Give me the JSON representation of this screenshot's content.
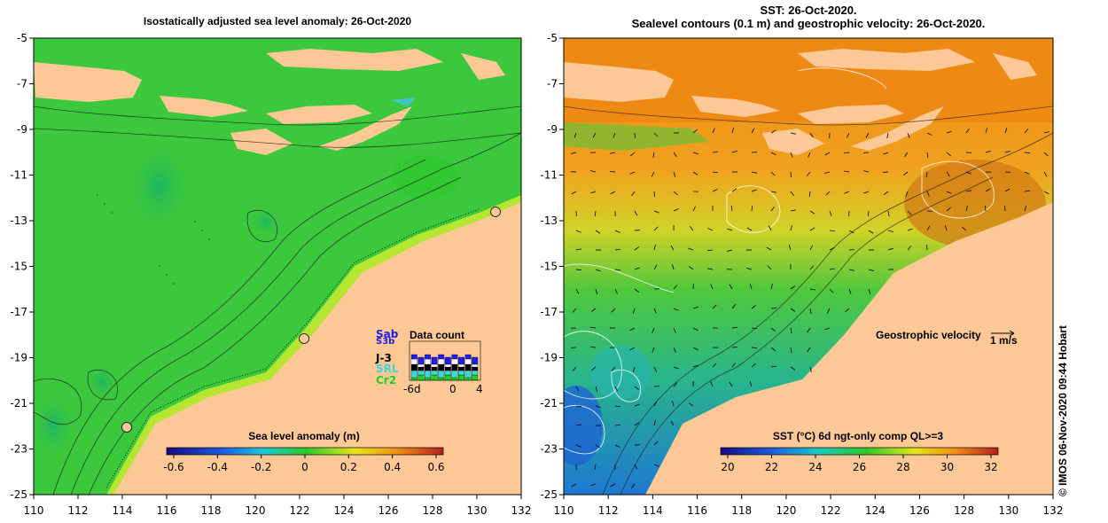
{
  "left_map": {
    "title": "Isostatically adjusted sea level anomaly: 26-Oct-2020",
    "colorbar": {
      "label": "Sea level anomaly (m)",
      "ticks": [
        "-0.6",
        "-0.4",
        "-0.2",
        "0",
        "0.2",
        "0.4",
        "0.6"
      ]
    },
    "data_count": {
      "title": "Data count",
      "satellites": [
        {
          "name": "Sab",
          "color": "#1e1ee6"
        },
        {
          "name": "S3b",
          "color": "#1e1ee6"
        },
        {
          "name": "J-3",
          "color": "#000000"
        },
        {
          "name": "SRL",
          "color": "#3ed7d7"
        },
        {
          "name": "Cr2",
          "color": "#1ed21e"
        }
      ],
      "axis_ticks": [
        "-6d",
        "0",
        "4"
      ]
    }
  },
  "right_map": {
    "title_line1": "SST: 26-Oct-2020.",
    "title_line2": "Sealevel contours (0.1 m) and geostrophic velocity: 26-Oct-2020.",
    "velocity_legend": "Geostrophic velocity",
    "velocity_scale": "1 m/s",
    "colorbar": {
      "label": "SST (°C) 6d ngt-only comp QL>=3",
      "ticks": [
        "20",
        "22",
        "24",
        "26",
        "28",
        "30",
        "32"
      ]
    }
  },
  "axes": {
    "lon_ticks": [
      "110",
      "112",
      "114",
      "116",
      "118",
      "120",
      "122",
      "124",
      "126",
      "128",
      "130",
      "132"
    ],
    "lat_ticks": [
      "-5",
      "-7",
      "-9",
      "-11",
      "-13",
      "-15",
      "-17",
      "-19",
      "-21",
      "-23",
      "-25"
    ]
  },
  "colors": {
    "land": "#fcc896",
    "sla_ocean": "#3cc83c",
    "sst_warm": "#ee8a14",
    "sst_cool": "#2ab4c8"
  },
  "credit": "© IMOS 06-Nov-2020 09:44 Hobart"
}
